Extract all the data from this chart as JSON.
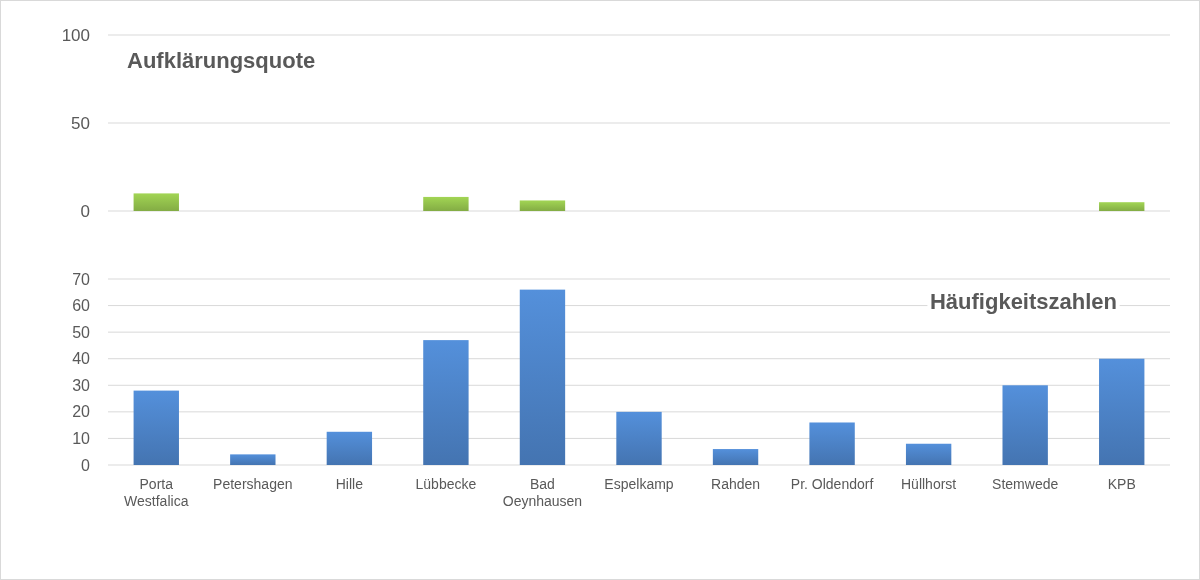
{
  "chart_data": [
    {
      "type": "bar",
      "title": "Aufklärungsquote",
      "categories": [
        null,
        null,
        null,
        null,
        null,
        null,
        null,
        null,
        null,
        null,
        null
      ],
      "values": [
        10,
        0,
        0,
        8,
        6,
        0,
        0,
        0,
        0,
        0,
        5
      ],
      "color": "#8fbc4a",
      "ylim": [
        0,
        100
      ],
      "yticks": [
        0,
        50,
        100
      ],
      "grid": "y",
      "tick_labels": "y"
    },
    {
      "type": "bar",
      "title": "Häufigkeitszahlen",
      "categories": [
        "Porta Westfalica",
        "Petershagen",
        "Hille",
        "Lübbecke",
        "Bad Oeynhausen",
        "Espelkamp",
        "Rahden",
        "Pr. Oldendorf",
        "Hüllhorst",
        "Stemwede",
        "KPB"
      ],
      "values": [
        28,
        4,
        12.5,
        47,
        66,
        20,
        6,
        16,
        8,
        30,
        40
      ],
      "color": "#4a7fc1",
      "ylim": [
        0,
        70
      ],
      "yticks": [
        0,
        10,
        20,
        30,
        40,
        50,
        60,
        70
      ],
      "grid": "y"
    }
  ]
}
